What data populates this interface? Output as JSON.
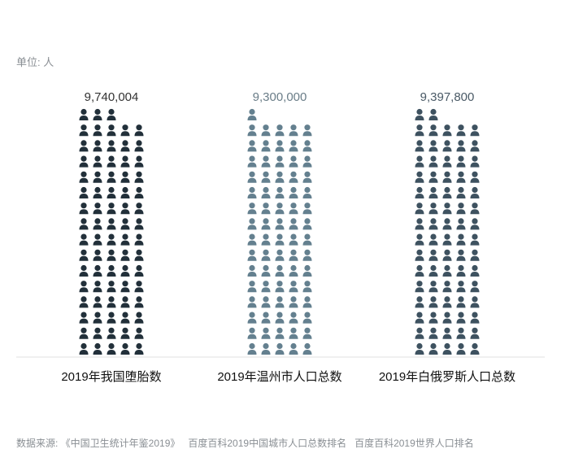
{
  "unit_label": "单位: 人",
  "source": {
    "prefix": "数据来源: ",
    "items": [
      "《中国卫生统计年鉴2019》",
      "百度百科2019中国城市人口总数排名",
      "百度百科2019世界人口排名"
    ]
  },
  "chart_data": {
    "type": "bar",
    "subtype": "pictograph",
    "icon": "person-icon",
    "title": "",
    "xlabel": "",
    "ylabel": "",
    "categories": [
      "2019年我国堕胎数",
      "2019年温州市人口总数",
      "2019年白俄罗斯人口总数"
    ],
    "values": [
      9740004,
      9300000,
      9397800
    ],
    "value_labels": [
      "9,740,004",
      "9,300,000",
      "9,397,800"
    ],
    "icons_per_bar": [
      78,
      76,
      77
    ],
    "colors": [
      "#22303a",
      "#64808f",
      "#3e5260"
    ],
    "label_colors": [
      "#333333",
      "#6a7d88",
      "#4a5a66"
    ]
  }
}
